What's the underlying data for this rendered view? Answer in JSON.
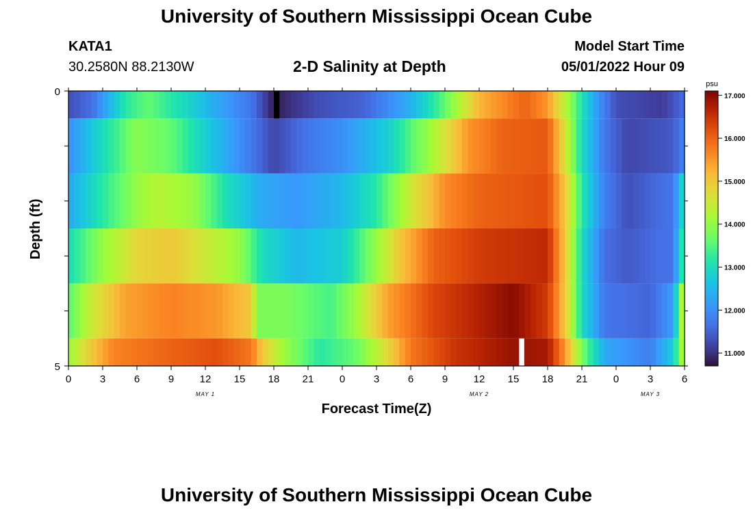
{
  "page": {
    "title": "University of Southern Mississippi Ocean Cube",
    "footer_title": "University of Southern Mississippi Ocean Cube"
  },
  "station": {
    "name": "KATA1",
    "coords": "30.2580N  88.2130W"
  },
  "model": {
    "label": "Model Start Time",
    "time": "05/01/2022 Hour 09"
  },
  "chart_data": {
    "type": "heatmap",
    "title": "2-D Salinity at Depth",
    "xlabel": "Forecast Time(Z)",
    "ylabel": "Depth (ft)",
    "units": "psu",
    "colormap": "turbo",
    "vmin": 10.7,
    "vmax": 17.1,
    "xlim": [
      0,
      54
    ],
    "ylim": [
      5,
      0
    ],
    "x_tick_values": [
      0,
      3,
      6,
      9,
      12,
      15,
      18,
      21,
      24,
      27,
      30,
      33,
      36,
      39,
      42,
      45,
      48,
      51,
      54
    ],
    "x_tick_labels": [
      "0",
      "3",
      "6",
      "9",
      "12",
      "15",
      "18",
      "21",
      "0",
      "3",
      "6",
      "9",
      "12",
      "15",
      "18",
      "21",
      "0",
      "3",
      "6"
    ],
    "day_labels": [
      {
        "x": 12,
        "label": "MAY 1"
      },
      {
        "x": 36,
        "label": "MAY 2"
      },
      {
        "x": 51,
        "label": "MAY 3"
      }
    ],
    "y_tick_labels": [
      "0",
      "5"
    ],
    "colorbar_ticks": [
      "11.000",
      "12.000",
      "13.000",
      "14.000",
      "15.000",
      "16.000",
      "17.000"
    ],
    "colorbar_tick_values": [
      11,
      12,
      13,
      14,
      15,
      16,
      17
    ],
    "rows": [
      {
        "depth": [
          0.0,
          0.5
        ],
        "keyframes": [
          [
            0,
            11.3
          ],
          [
            2,
            11.6
          ],
          [
            5,
            13.2
          ],
          [
            7,
            13.6
          ],
          [
            10,
            13.0
          ],
          [
            13,
            12.3
          ],
          [
            16,
            11.7
          ],
          [
            18,
            10.8
          ],
          [
            19.5,
            11.0
          ],
          [
            22,
            11.3
          ],
          [
            26,
            11.5
          ],
          [
            30,
            12.4
          ],
          [
            33,
            13.6
          ],
          [
            36,
            15.2
          ],
          [
            40,
            16.0
          ],
          [
            42,
            15.5
          ],
          [
            44.5,
            13.5
          ],
          [
            46.5,
            12.0
          ],
          [
            48,
            11.3
          ],
          [
            52,
            11.1
          ],
          [
            54,
            11.6
          ]
        ]
      },
      {
        "depth": [
          0.5,
          1.5
        ],
        "keyframes": [
          [
            0,
            12.0
          ],
          [
            3,
            13.0
          ],
          [
            6,
            13.9
          ],
          [
            9,
            13.6
          ],
          [
            12,
            12.8
          ],
          [
            15,
            12.0
          ],
          [
            18,
            11.2
          ],
          [
            21,
            11.7
          ],
          [
            24,
            12.0
          ],
          [
            28,
            12.8
          ],
          [
            32,
            14.2
          ],
          [
            35,
            15.5
          ],
          [
            38,
            16.0
          ],
          [
            42,
            16.1
          ],
          [
            43.5,
            14.6
          ],
          [
            45,
            13.0
          ],
          [
            47,
            11.7
          ],
          [
            49,
            11.2
          ],
          [
            53,
            11.4
          ],
          [
            54,
            11.9
          ]
        ]
      },
      {
        "depth": [
          1.5,
          2.5
        ],
        "keyframes": [
          [
            0,
            12.3
          ],
          [
            3,
            13.2
          ],
          [
            6,
            14.0
          ],
          [
            8,
            14.3
          ],
          [
            11,
            14.0
          ],
          [
            14,
            13.0
          ],
          [
            17,
            12.3
          ],
          [
            20,
            12.1
          ],
          [
            24,
            12.5
          ],
          [
            27,
            13.2
          ],
          [
            30,
            14.5
          ],
          [
            33,
            15.6
          ],
          [
            36,
            16.0
          ],
          [
            42,
            16.2
          ],
          [
            43.5,
            15.0
          ],
          [
            45,
            13.2
          ],
          [
            47,
            11.8
          ],
          [
            49,
            11.3
          ],
          [
            53,
            11.7
          ],
          [
            54,
            13.2
          ]
        ]
      },
      {
        "depth": [
          2.5,
          3.5
        ],
        "keyframes": [
          [
            0,
            13.0
          ],
          [
            3,
            14.0
          ],
          [
            6,
            14.8
          ],
          [
            9,
            15.0
          ],
          [
            12,
            14.5
          ],
          [
            15,
            14.0
          ],
          [
            17,
            13.0
          ],
          [
            20,
            12.5
          ],
          [
            24,
            12.8
          ],
          [
            27,
            14.0
          ],
          [
            29,
            15.0
          ],
          [
            32,
            16.0
          ],
          [
            36,
            16.4
          ],
          [
            42,
            16.6
          ],
          [
            43.5,
            15.0
          ],
          [
            45,
            13.0
          ],
          [
            47,
            11.6
          ],
          [
            49,
            11.4
          ],
          [
            53,
            11.7
          ],
          [
            54,
            13.6
          ]
        ]
      },
      {
        "depth": [
          3.5,
          4.5
        ],
        "keyframes": [
          [
            0,
            13.5
          ],
          [
            2,
            14.5
          ],
          [
            5,
            15.4
          ],
          [
            9,
            15.7
          ],
          [
            13,
            15.5
          ],
          [
            16,
            15.0
          ],
          [
            16.5,
            13.8
          ],
          [
            19,
            13.8
          ],
          [
            23,
            13.4
          ],
          [
            25,
            14.0
          ],
          [
            28,
            15.4
          ],
          [
            32,
            16.3
          ],
          [
            36,
            16.7
          ],
          [
            39,
            17.0
          ],
          [
            42,
            16.4
          ],
          [
            43.5,
            15.0
          ],
          [
            45,
            13.0
          ],
          [
            47,
            11.7
          ],
          [
            51,
            11.5
          ],
          [
            53,
            12.2
          ],
          [
            54,
            14.8
          ]
        ]
      },
      {
        "depth": [
          4.5,
          5.0
        ],
        "keyframes": [
          [
            0,
            14.0
          ],
          [
            1.5,
            14.8
          ],
          [
            4,
            15.7
          ],
          [
            9,
            16.0
          ],
          [
            13,
            16.2
          ],
          [
            16,
            15.8
          ],
          [
            17,
            15.0
          ],
          [
            19,
            14.0
          ],
          [
            22,
            13.2
          ],
          [
            25,
            13.6
          ],
          [
            27,
            14.3
          ],
          [
            30,
            15.8
          ],
          [
            34,
            16.5
          ],
          [
            39,
            16.9
          ],
          [
            42,
            16.8
          ],
          [
            43.5,
            15.5
          ],
          [
            45,
            13.8
          ],
          [
            47,
            12.3
          ],
          [
            51,
            11.8
          ],
          [
            53,
            12.8
          ],
          [
            54,
            14.5
          ]
        ]
      }
    ],
    "markers": [
      {
        "x": 18,
        "width": 0.5,
        "depth": [
          0.0,
          0.5
        ],
        "color": "#000000"
      },
      {
        "x": 39.5,
        "width": 0.45,
        "depth": [
          4.5,
          5.0
        ],
        "color": "#ffffff"
      }
    ]
  }
}
